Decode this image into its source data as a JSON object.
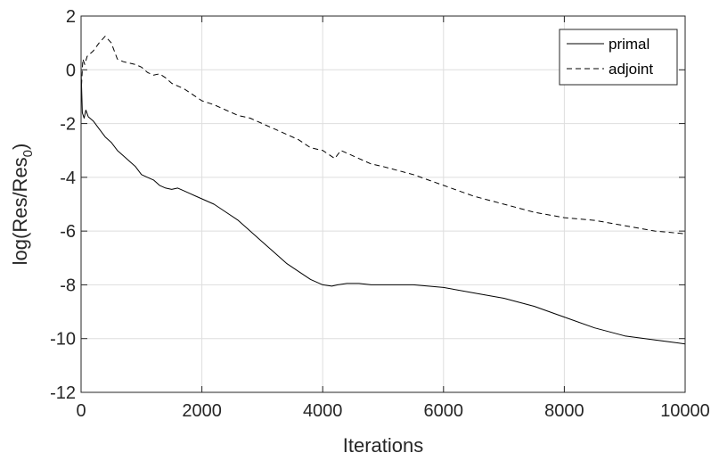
{
  "chart_data": {
    "type": "line",
    "xlabel": "Iterations",
    "ylabel_main": "log(Res/Res",
    "ylabel_sub": "0",
    "ylabel_close": ")",
    "xlim": [
      0,
      10000
    ],
    "ylim": [
      -12,
      2
    ],
    "xticks": [
      0,
      2000,
      4000,
      6000,
      8000,
      10000
    ],
    "yticks": [
      -12,
      -10,
      -8,
      -6,
      -4,
      -2,
      0,
      2
    ],
    "grid": true,
    "legend_position": "top-right",
    "series": [
      {
        "name": "primal",
        "style": "solid",
        "color": "#000000",
        "x": [
          0,
          20,
          50,
          80,
          120,
          200,
          300,
          400,
          500,
          600,
          700,
          800,
          900,
          1000,
          1100,
          1200,
          1300,
          1400,
          1500,
          1600,
          1700,
          1800,
          1900,
          2000,
          2200,
          2400,
          2600,
          2800,
          3000,
          3200,
          3400,
          3600,
          3800,
          4000,
          4150,
          4250,
          4400,
          4600,
          4800,
          5000,
          5500,
          6000,
          6500,
          7000,
          7500,
          8000,
          8500,
          9000,
          9500,
          10000
        ],
        "y": [
          0,
          -1.6,
          -1.8,
          -1.5,
          -1.75,
          -1.9,
          -2.2,
          -2.5,
          -2.7,
          -3.0,
          -3.2,
          -3.4,
          -3.6,
          -3.9,
          -4.0,
          -4.1,
          -4.3,
          -4.4,
          -4.45,
          -4.4,
          -4.5,
          -4.6,
          -4.7,
          -4.8,
          -5.0,
          -5.3,
          -5.6,
          -6.0,
          -6.4,
          -6.8,
          -7.2,
          -7.5,
          -7.8,
          -8.0,
          -8.05,
          -8.0,
          -7.95,
          -7.95,
          -8.0,
          -8.0,
          -8.0,
          -8.1,
          -8.3,
          -8.5,
          -8.8,
          -9.2,
          -9.6,
          -9.9,
          -10.05,
          -10.2
        ]
      },
      {
        "name": "adjoint",
        "style": "dashed",
        "color": "#000000",
        "x": [
          0,
          30,
          60,
          100,
          200,
          300,
          400,
          500,
          600,
          700,
          800,
          900,
          1000,
          1100,
          1200,
          1300,
          1400,
          1500,
          1600,
          1700,
          1800,
          1900,
          2000,
          2200,
          2400,
          2600,
          2800,
          3000,
          3200,
          3400,
          3600,
          3800,
          4000,
          4200,
          4300,
          4400,
          4600,
          4800,
          5000,
          5500,
          6000,
          6500,
          7000,
          7500,
          8000,
          8500,
          9000,
          9500,
          10000
        ],
        "y": [
          -0.9,
          0.4,
          0.2,
          0.5,
          0.7,
          1.0,
          1.25,
          1.0,
          0.4,
          0.3,
          0.25,
          0.2,
          0.1,
          -0.1,
          -0.2,
          -0.15,
          -0.3,
          -0.5,
          -0.6,
          -0.7,
          -0.85,
          -1.0,
          -1.15,
          -1.3,
          -1.5,
          -1.7,
          -1.8,
          -2.0,
          -2.2,
          -2.4,
          -2.6,
          -2.9,
          -3.0,
          -3.3,
          -3.0,
          -3.1,
          -3.3,
          -3.5,
          -3.6,
          -3.9,
          -4.3,
          -4.7,
          -5.0,
          -5.3,
          -5.5,
          -5.6,
          -5.8,
          -6.0,
          -6.1
        ]
      }
    ]
  }
}
